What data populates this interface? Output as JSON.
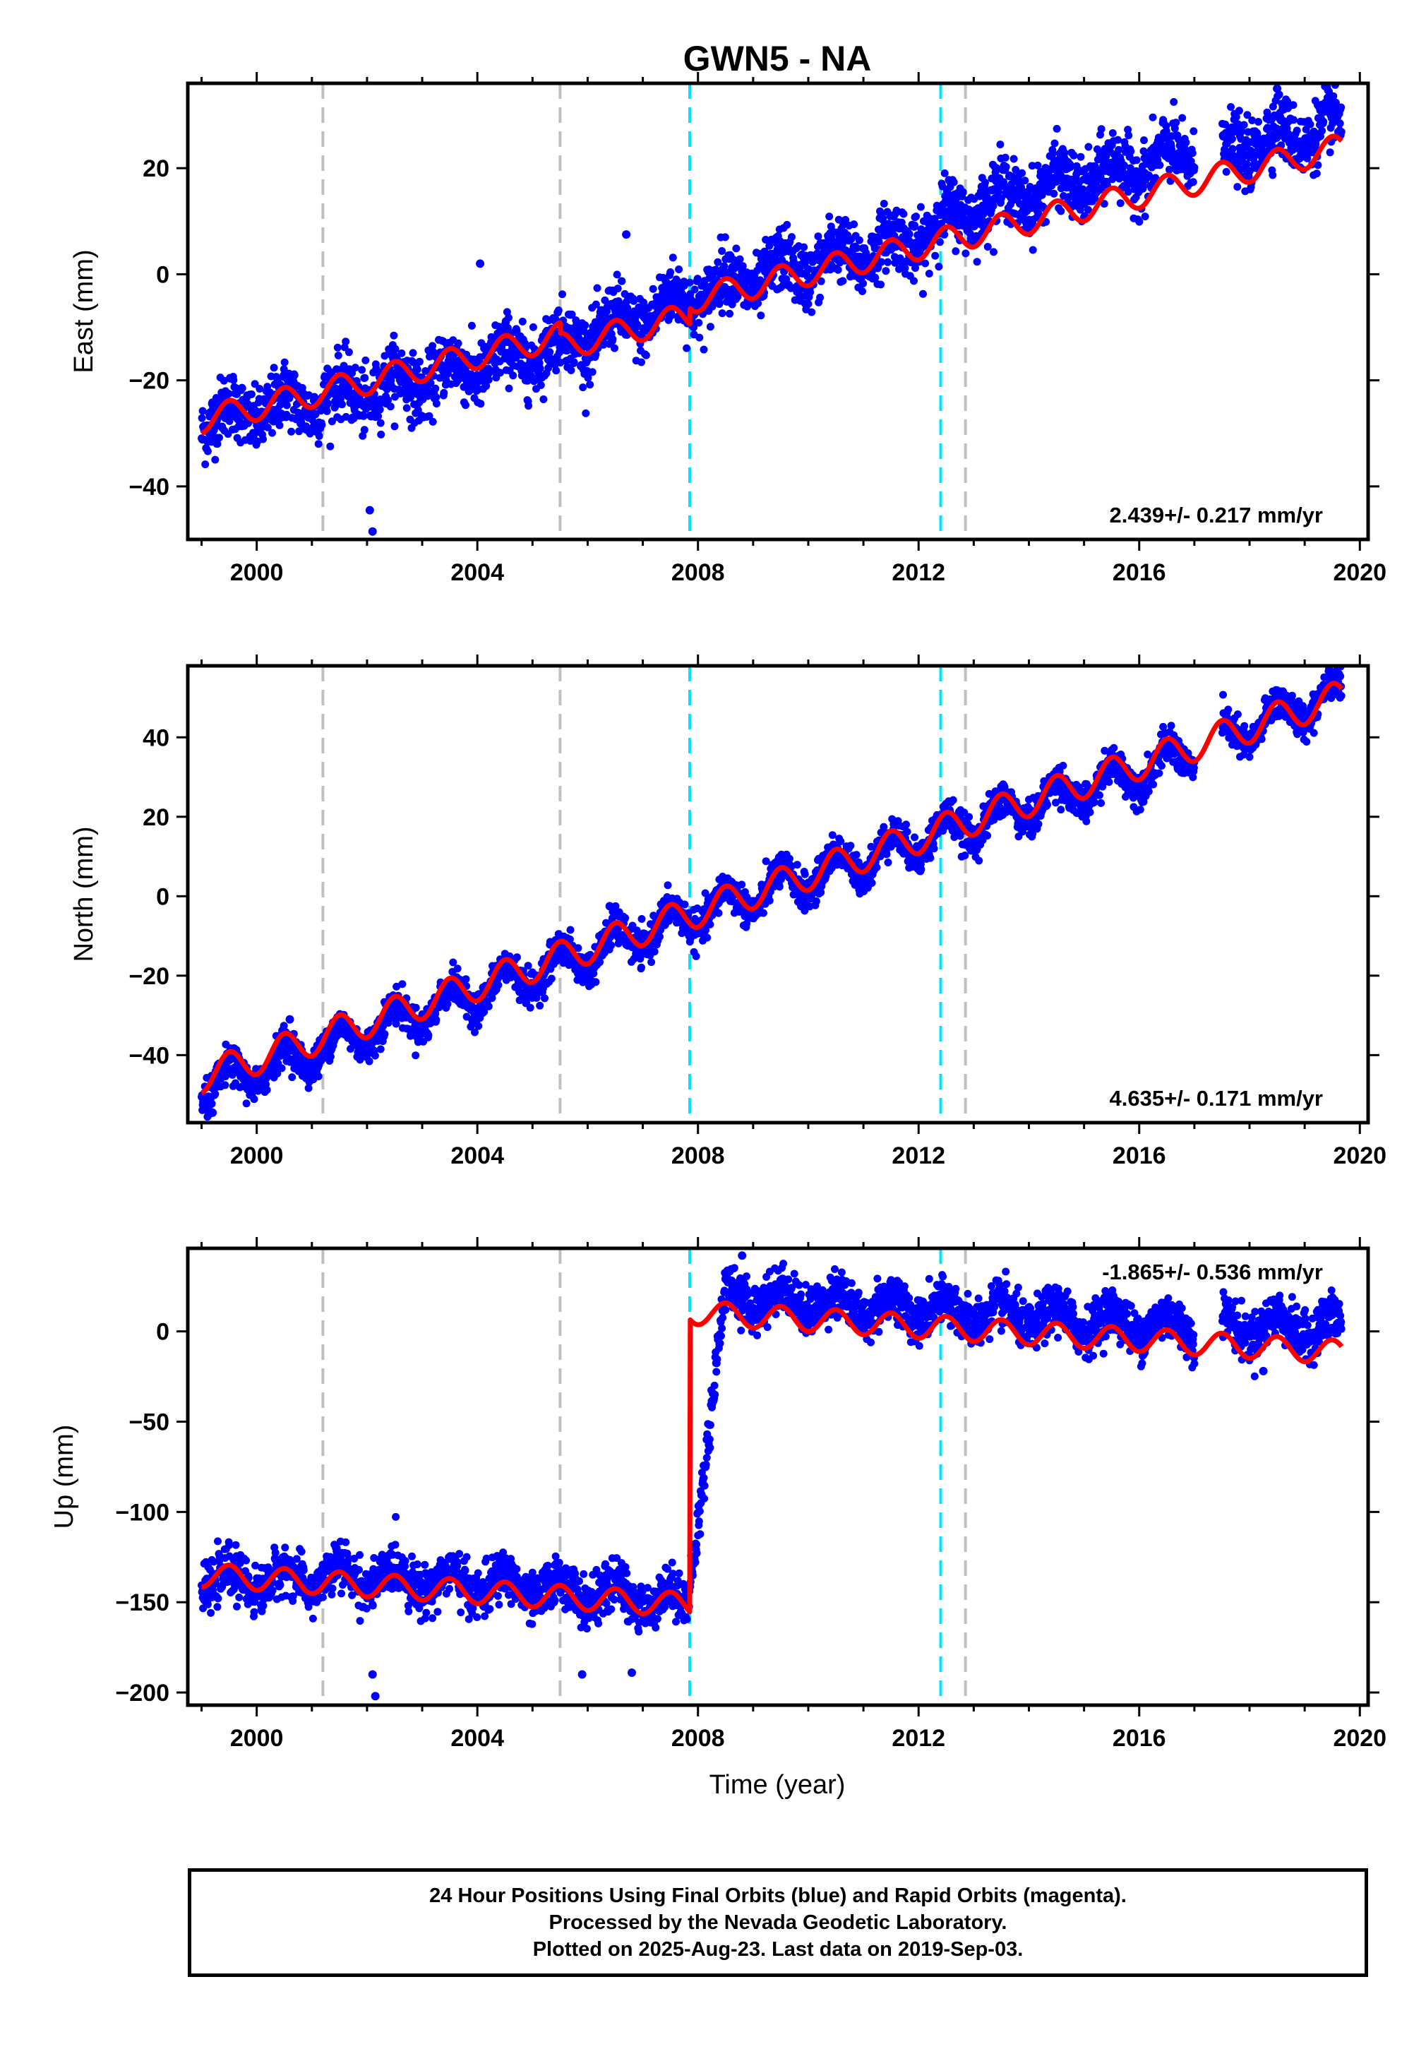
{
  "chart_data": {
    "title": "GWN5 - NA",
    "xlabel": "Time (year)",
    "xlim": [
      1998.75,
      2020.15
    ],
    "xticks": [
      2000,
      2004,
      2008,
      2012,
      2016,
      2020
    ],
    "xtick_labels": [
      "2000",
      "2004",
      "2008",
      "2012",
      "2016",
      "2020"
    ],
    "data_span": [
      1999.0,
      2019.67
    ],
    "data_gap": [
      2017.0,
      2017.5
    ],
    "antenna_change_lines": {
      "color": "#c0c0c0",
      "x": [
        2001.2,
        2005.5,
        2012.85
      ]
    },
    "earthquake_lines": {
      "color": "#00e5ff",
      "x": [
        2007.85,
        2012.4
      ]
    },
    "colors": {
      "observations": "#0000ff",
      "model": "#ff0000",
      "frame": "#000000"
    },
    "panels": [
      {
        "type": "scatter",
        "component": "east",
        "ylabel": "East (mm)",
        "ylim": [
          -50,
          36
        ],
        "yticks": [
          -40,
          -20,
          0,
          20
        ],
        "ytick_labels": [
          "−40",
          "−20",
          "0",
          "20"
        ],
        "rate_label": "2.439+/- 0.217 mm/yr",
        "rate_position": "bottom-right",
        "series": [
          {
            "values": [
              -27.5,
              -21.5,
              -13.5,
              -2.0,
              6.4,
              13.0,
              22.5,
              28.0
            ]
          }
        ],
        "series_x": [
          1999.0,
          2002.3,
          2005.5,
          2008.5,
          2011.9,
          2013.0,
          2016.9,
          2019.66
        ],
        "model_trend": {
          "start": -27.5,
          "rate": 2.439
        },
        "seasonal_amplitude": 2.5,
        "offsets": [
          {
            "x": 2005.5,
            "size": -2.0
          },
          {
            "x": 2007.85,
            "size": 3.0
          }
        ],
        "scatter_noise": 3.0,
        "outliers": [
          {
            "x": 2002.05,
            "y": -44.5
          },
          {
            "x": 2002.1,
            "y": -48.5
          },
          {
            "x": 2004.05,
            "y": 2.0
          },
          {
            "x": 2006.7,
            "y": 7.5
          },
          {
            "x": 2018.5,
            "y": 35.0
          }
        ]
      },
      {
        "type": "scatter",
        "component": "north",
        "ylabel": "North (mm)",
        "ylim": [
          -57,
          58
        ],
        "yticks": [
          -40,
          -20,
          0,
          20,
          40
        ],
        "ytick_labels": [
          "−40",
          "−20",
          "0",
          "20",
          "40"
        ],
        "rate_label": "4.635+/- 0.171 mm/yr",
        "rate_position": "bottom-right",
        "series": [
          {
            "values": [
              -49.0,
              -34.0,
              -14.5,
              -2.0,
              14.0,
              33.5,
              52.0
            ]
          }
        ],
        "series_x": [
          1999.0,
          2002.0,
          2006.0,
          2008.5,
          2012.0,
          2016.5,
          2019.66
        ],
        "model_trend": {
          "start": -45.5,
          "rate": 4.635
        },
        "seasonal_amplitude": 4.0,
        "offsets": [],
        "scatter_noise": 2.2,
        "outliers": [
          {
            "x": 1999.2,
            "y": -54.5
          },
          {
            "x": 2000.6,
            "y": -31.0
          },
          {
            "x": 2006.4,
            "y": -2.5
          }
        ]
      },
      {
        "type": "scatter",
        "component": "up",
        "ylabel": "Up (mm)",
        "ylim": [
          -207,
          46
        ],
        "yticks": [
          -200,
          -150,
          -100,
          -50,
          0
        ],
        "ytick_labels": [
          "−200",
          "−150",
          "−100",
          "−50",
          "0"
        ],
        "rate_label": "-1.865+/- 0.536 mm/yr",
        "rate_position": "top-right",
        "series": [
          {
            "values": [
              -139.0,
              -136.0,
              -142.0,
              -150.0,
              20.0,
              12.0,
              3.0,
              2.0
            ]
          }
        ],
        "series_x": [
          1999.0,
          2002.0,
          2005.0,
          2007.8,
          2008.5,
          2012.0,
          2016.5,
          2019.66
        ],
        "model_trend": {
          "start": -135.0,
          "rate": -1.865
        },
        "seasonal_amplitude": 6.5,
        "offsets": [
          {
            "x": 2007.85,
            "size": 162.0
          }
        ],
        "scatter_noise": 6.5,
        "outliers": [
          {
            "x": 2002.1,
            "y": -190.0
          },
          {
            "x": 2002.15,
            "y": -202.0
          },
          {
            "x": 2005.9,
            "y": -190.0
          },
          {
            "x": 2006.8,
            "y": -189.0
          },
          {
            "x": 2008.8,
            "y": 42.0
          },
          {
            "x": 2018.25,
            "y": -22.0
          }
        ]
      }
    ]
  },
  "footer": {
    "line1": "24 Hour Positions Using Final Orbits (blue) and Rapid Orbits (magenta).",
    "line2": "Processed by the Nevada Geodetic Laboratory.",
    "line3": "Plotted on 2025-Aug-23. Last data on 2019-Sep-03."
  }
}
